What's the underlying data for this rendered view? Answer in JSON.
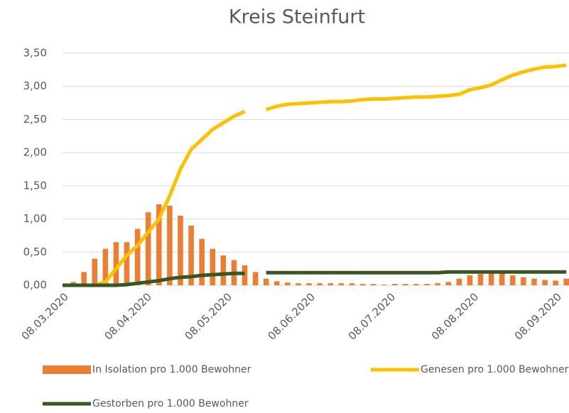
{
  "chart_data": {
    "type": "bar-line",
    "title": "Kreis Steinfurt",
    "x": [
      "08.03.2020",
      "12.03.2020",
      "16.03.2020",
      "20.03.2020",
      "24.03.2020",
      "28.03.2020",
      "01.04.2020",
      "05.04.2020",
      "09.04.2020",
      "13.04.2020",
      "17.04.2020",
      "21.04.2020",
      "25.04.2020",
      "29.04.2020",
      "03.05.2020",
      "07.05.2020",
      "11.05.2020",
      "15.05.2020",
      "19.05.2020",
      "23.05.2020",
      "27.05.2020",
      "31.05.2020",
      "04.06.2020",
      "08.06.2020",
      "12.06.2020",
      "16.06.2020",
      "20.06.2020",
      "24.06.2020",
      "28.06.2020",
      "02.07.2020",
      "06.07.2020",
      "10.07.2020",
      "14.07.2020",
      "18.07.2020",
      "22.07.2020",
      "26.07.2020",
      "30.07.2020",
      "03.08.2020",
      "07.08.2020",
      "11.08.2020",
      "15.08.2020",
      "19.08.2020",
      "23.08.2020",
      "27.08.2020",
      "31.08.2020",
      "04.09.2020",
      "08.09.2020",
      "12.09.2020"
    ],
    "series": [
      {
        "name": "In Isolation pro 1.000 Bewohner",
        "kind": "bar",
        "color": "#ed7d31",
        "values": [
          0,
          0.05,
          0.2,
          0.4,
          0.55,
          0.65,
          0.65,
          0.85,
          1.1,
          1.22,
          1.2,
          1.05,
          0.9,
          0.7,
          0.55,
          0.45,
          0.38,
          0.3,
          0.2,
          0.1,
          0.06,
          0.04,
          0.03,
          0.03,
          0.03,
          0.03,
          0.03,
          0.03,
          0.02,
          0.02,
          0.01,
          0.02,
          0.02,
          0.02,
          0.02,
          0.03,
          0.05,
          0.1,
          0.15,
          0.17,
          0.18,
          0.18,
          0.15,
          0.12,
          0.1,
          0.08,
          0.07,
          0.1
        ]
      },
      {
        "name": "Genesen pro 1.000 Bewohner",
        "kind": "line",
        "color": "#ffc000",
        "values": [
          0,
          0,
          0,
          0,
          0.05,
          0.25,
          0.45,
          0.6,
          0.8,
          1.0,
          1.35,
          1.75,
          2.05,
          2.2,
          2.35,
          2.45,
          2.55,
          2.62,
          null,
          2.65,
          2.7,
          2.73,
          2.74,
          2.75,
          2.76,
          2.77,
          2.77,
          2.78,
          2.8,
          2.81,
          2.81,
          2.82,
          2.83,
          2.84,
          2.84,
          2.85,
          2.86,
          2.88,
          2.95,
          2.98,
          3.02,
          3.1,
          3.17,
          3.22,
          3.26,
          3.29,
          3.3,
          3.32
        ]
      },
      {
        "name": "Gestorben pro 1.000 Bewohner",
        "kind": "line",
        "color": "#375623",
        "values": [
          0,
          0,
          0,
          0,
          0,
          0,
          0.01,
          0.03,
          0.05,
          0.07,
          0.1,
          0.12,
          0.13,
          0.15,
          0.16,
          0.17,
          0.18,
          0.18,
          null,
          0.19,
          0.19,
          0.19,
          0.19,
          0.19,
          0.19,
          0.19,
          0.19,
          0.19,
          0.19,
          0.19,
          0.19,
          0.19,
          0.19,
          0.19,
          0.19,
          0.19,
          0.2,
          0.2,
          0.2,
          0.2,
          0.2,
          0.2,
          0.2,
          0.2,
          0.2,
          0.2,
          0.2,
          0.2
        ]
      }
    ],
    "xlim": [
      "08.03.2020",
      "13.09.2020"
    ],
    "xticks": [
      "08.03.2020",
      "08.04.2020",
      "08.05.2020",
      "08.06.2020",
      "08.07.2020",
      "08.08.2020",
      "08.09.2020"
    ],
    "ylim": [
      0,
      3.5
    ],
    "yticks": [
      {
        "value": 0,
        "label": "0,00"
      },
      {
        "value": 0.5,
        "label": "0,50"
      },
      {
        "value": 1,
        "label": "1,00"
      },
      {
        "value": 1.5,
        "label": "1,50"
      },
      {
        "value": 2,
        "label": "2,00"
      },
      {
        "value": 2.5,
        "label": "2,50"
      },
      {
        "value": 3,
        "label": "3,00"
      },
      {
        "value": 3.5,
        "label": "3,50"
      }
    ],
    "grid": true
  }
}
